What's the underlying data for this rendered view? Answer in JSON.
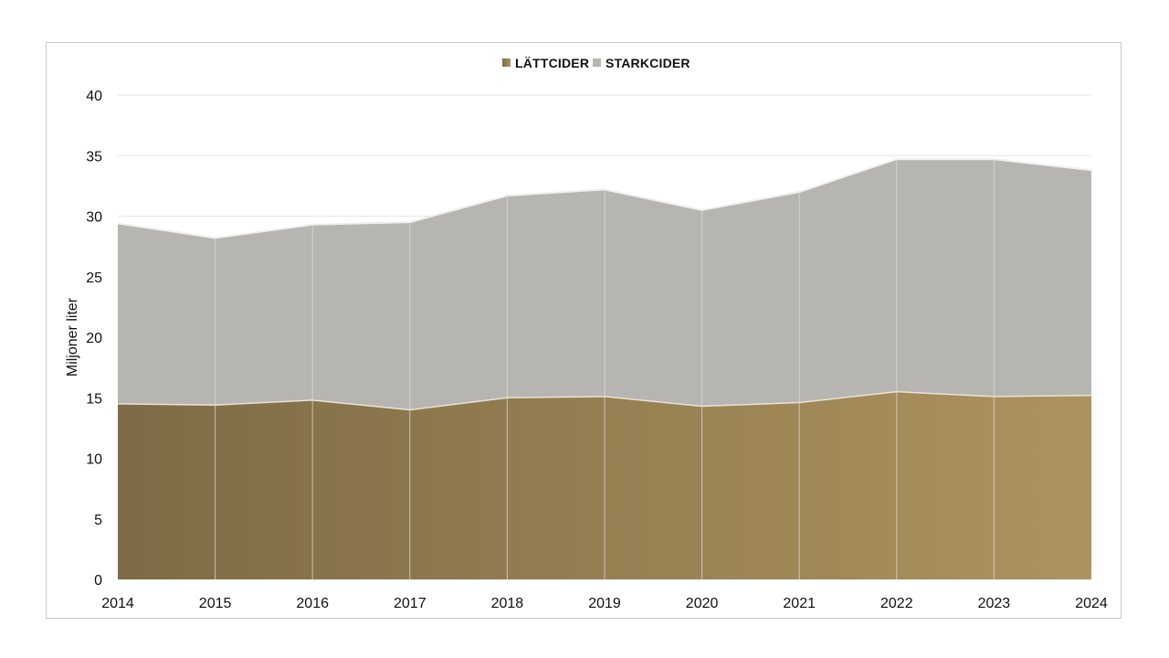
{
  "chart_data": {
    "type": "area",
    "stacked": true,
    "x": [
      "2014",
      "2015",
      "2016",
      "2017",
      "2018",
      "2019",
      "2020",
      "2021",
      "2022",
      "2023",
      "2024"
    ],
    "series": [
      {
        "name": "LÄTTCIDER",
        "values": [
          14.5,
          14.4,
          14.8,
          14.0,
          15.0,
          15.1,
          14.3,
          14.6,
          15.5,
          15.1,
          15.2
        ],
        "color_start": "#7e6b45",
        "color_end": "#ad935f"
      },
      {
        "name": "STARKCIDER",
        "values": [
          14.9,
          13.8,
          14.5,
          15.5,
          16.7,
          17.1,
          16.2,
          17.4,
          19.2,
          19.6,
          18.6
        ],
        "color": "#b6b5b2"
      }
    ],
    "ylabel": "Miljoner liter",
    "ylim": [
      0,
      40
    ],
    "yticks": [
      "0",
      "5",
      "10",
      "15",
      "20",
      "25",
      "30",
      "35",
      "40"
    ],
    "grid": true,
    "legend": "top-center"
  }
}
